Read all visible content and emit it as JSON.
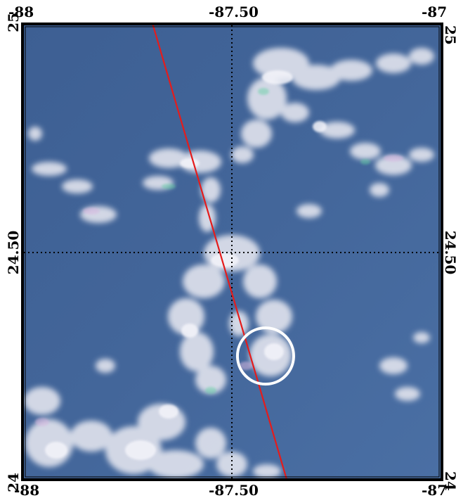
{
  "map": {
    "x_ticks": {
      "left": "-88",
      "center": "-87.50",
      "right": "-87"
    },
    "y_ticks": {
      "top": "25",
      "middle": "24.50",
      "bottom": "24"
    },
    "ocean_color": "#43669a",
    "cloud_color": "#e6e6ee",
    "track_color": "#e41c1c",
    "marker_color": "#ffffff",
    "gridline_style": "dotted",
    "track": {
      "start": {
        "lon": -87.69,
        "lat": 25.0
      },
      "end": {
        "lon": -87.37,
        "lat": 24.0
      }
    },
    "marker": {
      "lon": -87.42,
      "lat": 24.27
    }
  }
}
